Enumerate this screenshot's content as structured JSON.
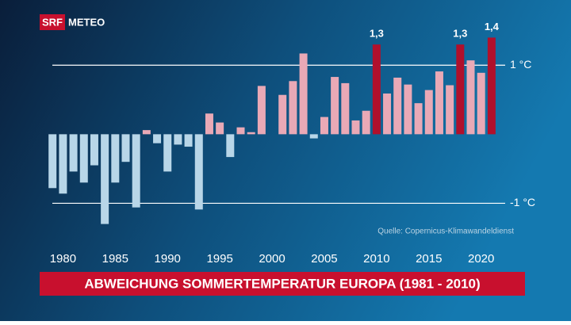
{
  "brand": {
    "logo": "SRF",
    "name": "METEO"
  },
  "chart_data": {
    "type": "bar",
    "title": "ABWEICHUNG SOMMERTEMPERATUR EUROPA (1981 - 2010)",
    "source": "Quelle: Copernicus-Klimawandeldienst",
    "x": [
      1979,
      1980,
      1981,
      1982,
      1983,
      1984,
      1985,
      1986,
      1987,
      1988,
      1989,
      1990,
      1991,
      1992,
      1993,
      1994,
      1995,
      1996,
      1997,
      1998,
      1999,
      2000,
      2001,
      2002,
      2003,
      2004,
      2005,
      2006,
      2007,
      2008,
      2009,
      2010,
      2011,
      2012,
      2013,
      2014,
      2015,
      2016,
      2017,
      2018,
      2019,
      2020,
      2021
    ],
    "values": [
      -0.78,
      -0.86,
      -0.54,
      -0.7,
      -0.45,
      -1.3,
      -0.7,
      -0.4,
      -1.06,
      0.06,
      -0.13,
      -0.54,
      -0.15,
      -0.18,
      -1.09,
      0.3,
      0.17,
      -0.33,
      0.1,
      0.03,
      0.7,
      0,
      0.57,
      0.77,
      1.17,
      -0.06,
      0.25,
      0.83,
      0.74,
      0.2,
      0.34,
      1.3,
      0.59,
      0.82,
      0.72,
      0.45,
      0.64,
      0.91,
      0.71,
      1.3,
      1.07,
      0.89,
      1.4
    ],
    "value_labels": [
      null,
      null,
      null,
      null,
      null,
      null,
      null,
      null,
      null,
      null,
      null,
      null,
      null,
      null,
      null,
      null,
      null,
      null,
      null,
      null,
      null,
      null,
      null,
      null,
      null,
      null,
      null,
      null,
      null,
      null,
      null,
      "1,3",
      null,
      null,
      null,
      null,
      null,
      null,
      null,
      "1,3",
      null,
      null,
      "1,4"
    ],
    "colors": [
      "#b8d6e8",
      "#b8d6e8",
      "#b8d6e8",
      "#b8d6e8",
      "#b8d6e8",
      "#b8d6e8",
      "#b8d6e8",
      "#b8d6e8",
      "#b8d6e8",
      "#e9a9b6",
      "#b8d6e8",
      "#b8d6e8",
      "#b8d6e8",
      "#b8d6e8",
      "#b8d6e8",
      "#e9a9b6",
      "#e9a9b6",
      "#b8d6e8",
      "#e9a9b6",
      "#e9a9b6",
      "#e9a9b6",
      "#e9a9b6",
      "#e9a9b6",
      "#e9a9b6",
      "#e9a9b6",
      "#b8d6e8",
      "#e9a9b6",
      "#e9a9b6",
      "#e9a9b6",
      "#e9a9b6",
      "#e9a9b6",
      "#b0102c",
      "#e9a9b6",
      "#e9a9b6",
      "#e9a9b6",
      "#e9a9b6",
      "#e9a9b6",
      "#e9a9b6",
      "#e9a9b6",
      "#b0102c",
      "#e9a9b6",
      "#e9a9b6",
      "#b0102c"
    ],
    "xlim": [
      1978.3,
      2022.3
    ],
    "xticks": [
      1980,
      1985,
      1990,
      1995,
      2000,
      2005,
      2010,
      2015,
      2020
    ],
    "ylim": [
      -1.5,
      1.6
    ],
    "yticks": [
      {
        "value": 1,
        "label": "1 °C"
      },
      {
        "value": -1,
        "label": "-1 °C"
      }
    ],
    "grid": true
  }
}
